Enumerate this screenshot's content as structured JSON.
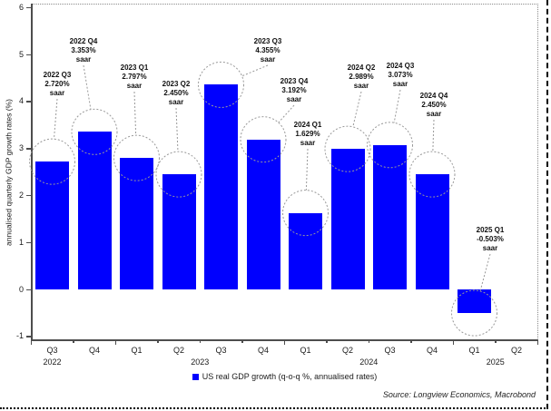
{
  "chart_data": {
    "type": "bar",
    "title": "",
    "ylabel": "annualised quarterly GDP growth rates (%)",
    "ylim": [
      -1,
      6
    ],
    "yticks": [
      6,
      5,
      4,
      3,
      2,
      1,
      0,
      -1
    ],
    "grid": false,
    "legend_position": "bottom-center",
    "bar_color": "#0000fe",
    "circle_color": "#999999",
    "x_quarter_labels": [
      "Q3",
      "Q4",
      "Q1",
      "Q2",
      "Q3",
      "Q4",
      "Q1",
      "Q2",
      "Q3",
      "Q4",
      "Q1",
      "Q2"
    ],
    "year_labels": [
      "2022",
      "2023",
      "2024",
      "2025"
    ],
    "series": [
      {
        "name": "US real GDP growth (q-o-q %, annualised rates)",
        "color": "#0000fe",
        "points": [
          {
            "period": "2022 Q3",
            "value": 2.72,
            "value_label": "2.720%",
            "suffix": "saar"
          },
          {
            "period": "2022 Q4",
            "value": 3.353,
            "value_label": "3.353%",
            "suffix": "saar"
          },
          {
            "period": "2023 Q1",
            "value": 2.797,
            "value_label": "2.797%",
            "suffix": "saar"
          },
          {
            "period": "2023 Q2",
            "value": 2.45,
            "value_label": "2.450%",
            "suffix": "saar"
          },
          {
            "period": "2023 Q3",
            "value": 4.355,
            "value_label": "4.355%",
            "suffix": "saar"
          },
          {
            "period": "2023 Q4",
            "value": 3.192,
            "value_label": "3.192%",
            "suffix": "saar"
          },
          {
            "period": "2024 Q1",
            "value": 1.629,
            "value_label": "1.629%",
            "suffix": "saar"
          },
          {
            "period": "2024 Q2",
            "value": 2.989,
            "value_label": "2.989%",
            "suffix": "saar"
          },
          {
            "period": "2024 Q3",
            "value": 3.073,
            "value_label": "3.073%",
            "suffix": "saar"
          },
          {
            "period": "2024 Q4",
            "value": 2.45,
            "value_label": "2.450%",
            "suffix": "saar"
          },
          {
            "period": "2025 Q1",
            "value": -0.503,
            "value_label": "-0.503%",
            "suffix": "saar"
          },
          {
            "period": "2025 Q2",
            "value": null,
            "value_label": "",
            "suffix": ""
          }
        ]
      }
    ]
  },
  "legend": {
    "label": "US real GDP growth (q-o-q %, annualised rates)",
    "swatch_color": "#0000fe"
  },
  "source": "Source: Longview Economics, Macrobond"
}
